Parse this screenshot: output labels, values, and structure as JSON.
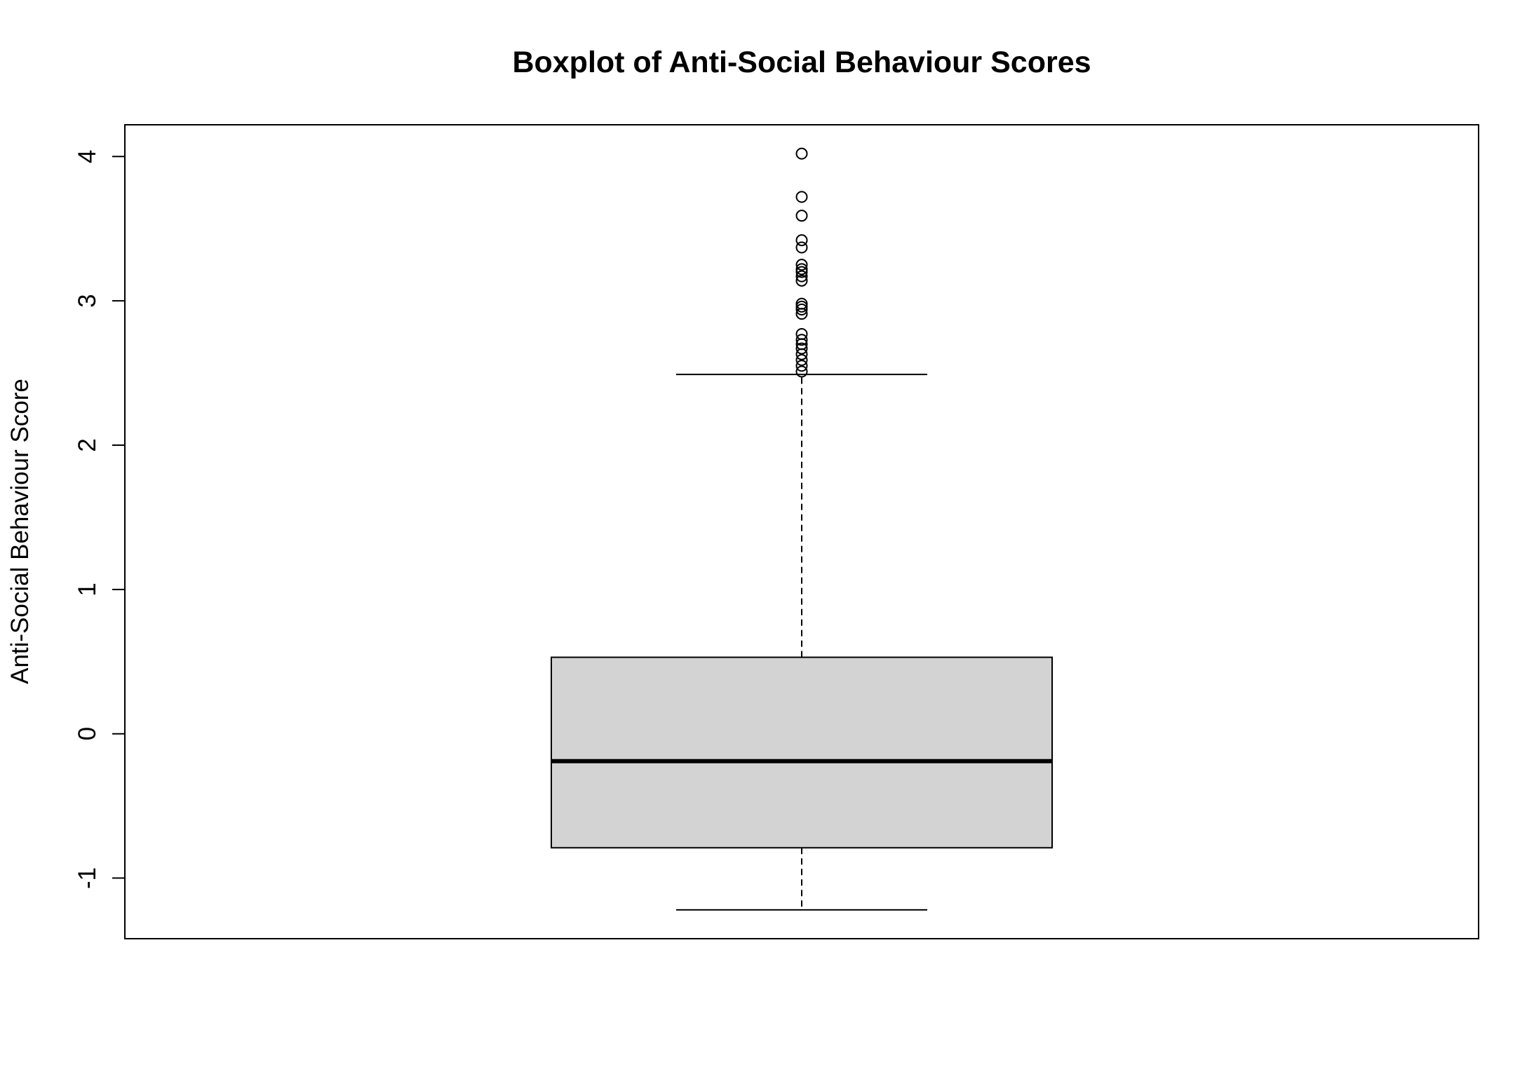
{
  "chart_data": {
    "type": "boxplot",
    "title": "Boxplot of Anti-Social Behaviour Scores",
    "xlabel": "",
    "ylabel": "Anti-Social Behaviour Score",
    "ylim": [
      -1.42,
      4.22
    ],
    "y_ticks": [
      -1,
      0,
      1,
      2,
      3,
      4
    ],
    "y_tick_labels": [
      "-1",
      "0",
      "1",
      "2",
      "3",
      "4"
    ],
    "grid": false,
    "legend": "none",
    "colors": {
      "box_fill": "#D3D3D3",
      "stroke": "#000000",
      "background": "#FFFFFF"
    },
    "box": {
      "whisker_low": -1.22,
      "q1": -0.79,
      "median": -0.19,
      "q3": 0.53,
      "whisker_high": 2.49
    },
    "outliers": [
      2.51,
      2.55,
      2.59,
      2.63,
      2.67,
      2.7,
      2.73,
      2.77,
      2.91,
      2.94,
      2.96,
      2.98,
      3.14,
      3.17,
      3.2,
      3.22,
      3.25,
      3.37,
      3.42,
      3.59,
      3.72,
      4.02
    ]
  }
}
